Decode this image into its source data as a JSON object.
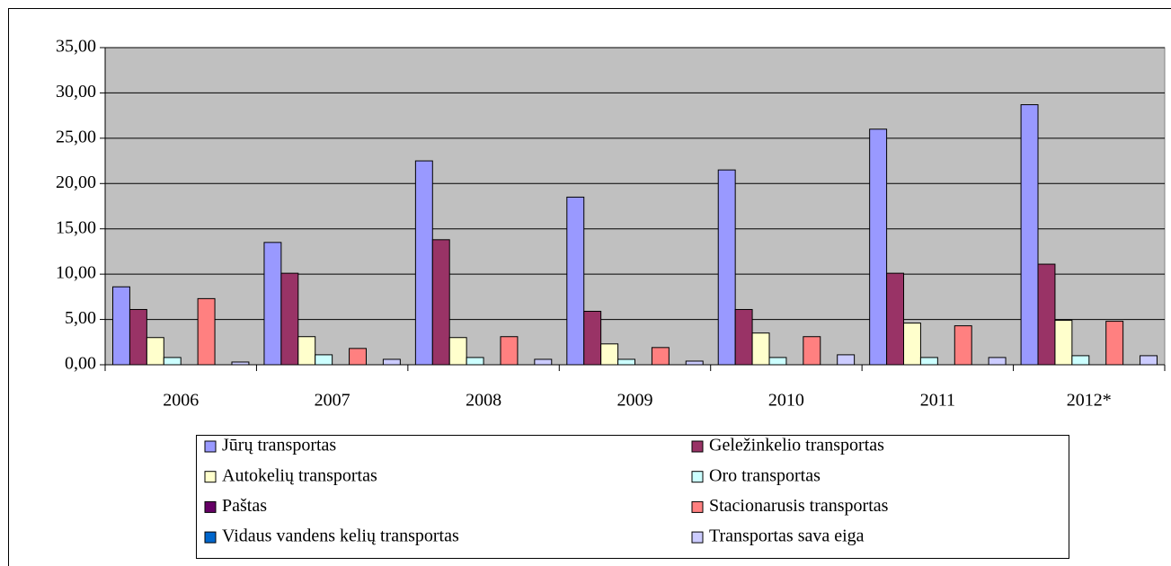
{
  "chart_data": {
    "type": "bar",
    "categories": [
      "2006",
      "2007",
      "2008",
      "2009",
      "2010",
      "2011",
      "2012*"
    ],
    "series": [
      {
        "name": "Jūrų transportas",
        "color": "#9999ff",
        "values": [
          8.6,
          13.5,
          22.5,
          18.5,
          21.5,
          26.0,
          28.7
        ]
      },
      {
        "name": "Geležinkelio transportas",
        "color": "#993366",
        "values": [
          6.1,
          10.1,
          13.8,
          5.9,
          6.1,
          10.1,
          11.1
        ]
      },
      {
        "name": "Autokelių transportas",
        "color": "#ffffcc",
        "values": [
          3.0,
          3.1,
          3.0,
          2.3,
          3.5,
          4.6,
          4.9
        ]
      },
      {
        "name": "Oro transportas",
        "color": "#ccffff",
        "values": [
          0.8,
          1.1,
          0.8,
          0.6,
          0.8,
          0.8,
          1.0
        ]
      },
      {
        "name": "Paštas",
        "color": "#660066",
        "values": [
          0,
          0,
          0,
          0,
          0,
          0,
          0
        ]
      },
      {
        "name": "Stacionarusis transportas",
        "color": "#ff8080",
        "values": [
          7.3,
          1.8,
          3.1,
          1.9,
          3.1,
          4.3,
          4.8
        ]
      },
      {
        "name": "Vidaus vandens kelių transportas",
        "color": "#0066cc",
        "values": [
          0,
          0,
          0,
          0,
          0,
          0,
          0
        ]
      },
      {
        "name": "Transportas sava eiga",
        "color": "#ccccff",
        "values": [
          0.3,
          0.6,
          0.6,
          0.4,
          1.1,
          0.8,
          1.0
        ]
      }
    ],
    "ylim": [
      0,
      35
    ],
    "yticks": [
      {
        "value": 0,
        "label": "0,00"
      },
      {
        "value": 5,
        "label": "5,00"
      },
      {
        "value": 10,
        "label": "10,00"
      },
      {
        "value": 15,
        "label": "15,00"
      },
      {
        "value": 20,
        "label": "20,00"
      },
      {
        "value": 25,
        "label": "25,00"
      },
      {
        "value": 30,
        "label": "30,00"
      },
      {
        "value": 35,
        "label": "35,00"
      }
    ],
    "grid": true,
    "legend": "bottom"
  }
}
